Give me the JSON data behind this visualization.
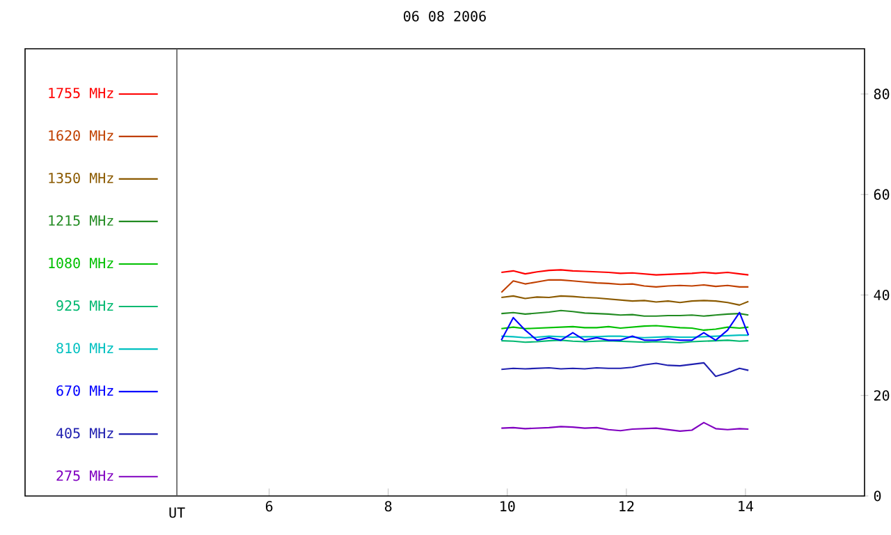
{
  "chart_data": {
    "type": "line",
    "title": "06 08 2006",
    "x": [
      9.9,
      10.1,
      10.3,
      10.5,
      10.7,
      10.9,
      11.1,
      11.3,
      11.5,
      11.7,
      11.9,
      12.1,
      12.3,
      12.5,
      12.7,
      12.9,
      13.1,
      13.3,
      13.5,
      13.7,
      13.9,
      14.05
    ],
    "series": [
      {
        "name": "1755 MHz",
        "color": "#ff0000",
        "values": [
          44.5,
          44.8,
          44.2,
          44.6,
          44.9,
          45,
          44.8,
          44.7,
          44.6,
          44.5,
          44.3,
          44.4,
          44.2,
          44,
          44.1,
          44.2,
          44.3,
          44.5,
          44.3,
          44.5,
          44.2,
          44.0
        ]
      },
      {
        "name": "1620 MHz",
        "color": "#c04000",
        "values": [
          40.5,
          42.8,
          42.2,
          42.6,
          43,
          43,
          42.8,
          42.6,
          42.4,
          42.3,
          42.1,
          42.2,
          41.8,
          41.6,
          41.8,
          41.9,
          41.8,
          42,
          41.7,
          41.9,
          41.6,
          41.6
        ]
      },
      {
        "name": "1350 MHz",
        "color": "#8b5a00",
        "values": [
          39.5,
          39.8,
          39.3,
          39.6,
          39.5,
          39.8,
          39.7,
          39.5,
          39.4,
          39.2,
          39,
          38.8,
          38.9,
          38.6,
          38.8,
          38.5,
          38.8,
          38.9,
          38.8,
          38.5,
          38.0,
          38.7
        ]
      },
      {
        "name": "1215 MHz",
        "color": "#228b22",
        "values": [
          36.3,
          36.5,
          36.2,
          36.4,
          36.6,
          36.9,
          36.7,
          36.4,
          36.3,
          36.2,
          36.0,
          36.1,
          35.8,
          35.8,
          35.9,
          35.9,
          36,
          35.8,
          36,
          36.2,
          36.3,
          36.0
        ]
      },
      {
        "name": "1080 MHz",
        "color": "#00c000",
        "values": [
          33.3,
          33.6,
          33.3,
          33.4,
          33.5,
          33.6,
          33.7,
          33.5,
          33.5,
          33.7,
          33.4,
          33.6,
          33.8,
          33.9,
          33.7,
          33.5,
          33.4,
          33.0,
          33.2,
          33.6,
          33.4,
          33.6
        ]
      },
      {
        "name": "925 MHz",
        "color": "#00b870",
        "values": [
          30.9,
          30.8,
          30.6,
          30.7,
          30.9,
          31.0,
          30.8,
          30.7,
          30.8,
          30.9,
          30.8,
          30.7,
          30.6,
          30.7,
          30.6,
          30.5,
          30.7,
          30.8,
          30.9,
          31.0,
          30.8,
          30.9
        ]
      },
      {
        "name": "810 MHz",
        "color": "#00c0c0",
        "values": [
          31.8,
          31.7,
          31.5,
          31.6,
          31.8,
          31.7,
          31.6,
          31.7,
          31.7,
          31.8,
          31.8,
          31.6,
          31.5,
          31.6,
          31.7,
          31.6,
          31.6,
          31.7,
          31.8,
          31.9,
          32.0,
          32.0
        ]
      },
      {
        "name": "670 MHz",
        "color": "#0000ff",
        "values": [
          31,
          35.5,
          33,
          31,
          31.5,
          31,
          32.5,
          31,
          31.5,
          31,
          31,
          31.8,
          31,
          31,
          31.3,
          31,
          31,
          32.5,
          31,
          33,
          36.5,
          32
        ]
      },
      {
        "name": "405 MHz",
        "color": "#2020b0",
        "values": [
          25.2,
          25.4,
          25.3,
          25.4,
          25.5,
          25.3,
          25.4,
          25.3,
          25.5,
          25.4,
          25.4,
          25.6,
          26.1,
          26.4,
          26.0,
          25.9,
          26.2,
          26.5,
          23.8,
          24.5,
          25.4,
          25.0
        ]
      },
      {
        "name": "275 MHz",
        "color": "#8000c0",
        "values": [
          13.5,
          13.6,
          13.4,
          13.5,
          13.6,
          13.8,
          13.7,
          13.5,
          13.6,
          13.2,
          13.0,
          13.3,
          13.4,
          13.5,
          13.2,
          12.9,
          13.1,
          14.6,
          13.4,
          13.2,
          13.4,
          13.3
        ]
      }
    ],
    "xlim": [
      1.9,
      16
    ],
    "ylim": [
      0,
      89
    ],
    "xticks": [
      6,
      8,
      10,
      12,
      14
    ],
    "yticks": [
      0,
      20,
      40,
      60,
      80
    ],
    "ref_lines": [
      {
        "axis": "x",
        "value": 4.45,
        "label": "UT"
      }
    ],
    "legend": "left",
    "grid": false,
    "marker": "none",
    "line_style": "solid"
  }
}
